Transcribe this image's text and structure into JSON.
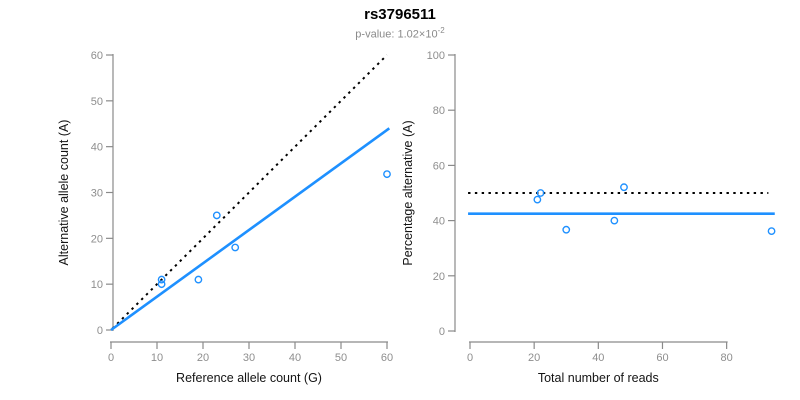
{
  "header": {
    "title": "rs3796511",
    "subtitle_base": "p-value: 1.02×10",
    "subtitle_exponent": "-2"
  },
  "colors": {
    "accent_blue": "#1E90FF",
    "axis_gray": "#8a8a8a",
    "tick_label_gray": "#8e8e8e",
    "label_black": "#141414",
    "dotted_black": "#000000"
  },
  "chart_data": [
    {
      "name": "allele-count-scatter",
      "type": "scatter",
      "xlabel": "Reference allele count (G)",
      "ylabel": "Alternative allele count (A)",
      "xlim": [
        0,
        60
      ],
      "ylim": [
        0,
        60
      ],
      "xticks": [
        0,
        10,
        20,
        30,
        40,
        50,
        60
      ],
      "yticks": [
        0,
        10,
        20,
        30,
        40,
        50,
        60
      ],
      "grid": false,
      "points": [
        [
          11,
          10
        ],
        [
          11,
          11
        ],
        [
          19,
          11
        ],
        [
          23,
          25
        ],
        [
          27,
          18
        ],
        [
          60,
          34
        ]
      ],
      "lines": [
        {
          "name": "identity-line",
          "style": "dotted",
          "color": "#000000",
          "from": [
            0.3,
            0.3
          ],
          "to": [
            60,
            60
          ]
        },
        {
          "name": "fit-line",
          "style": "solid",
          "color": "#1E90FF",
          "from": [
            0,
            0
          ],
          "to": [
            60.5,
            44
          ]
        }
      ]
    },
    {
      "name": "percentage-vs-reads",
      "type": "scatter",
      "xlabel": "Total number of reads",
      "ylabel": "Percentage alternative (A)",
      "xlim": [
        0,
        95
      ],
      "ylim": [
        0,
        100
      ],
      "xticks": [
        0,
        20,
        40,
        60,
        80
      ],
      "yticks": [
        0,
        20,
        40,
        60,
        80,
        100
      ],
      "grid": false,
      "points": [
        [
          21,
          47.6
        ],
        [
          22,
          50
        ],
        [
          30,
          36.7
        ],
        [
          45,
          40
        ],
        [
          48,
          52.1
        ],
        [
          94,
          36.2
        ]
      ],
      "lines": [
        {
          "name": "expected-50pct-line",
          "style": "dotted",
          "color": "#000000",
          "from": [
            -0.6,
            50
          ],
          "to": [
            93,
            50
          ]
        },
        {
          "name": "mean-percentage-line",
          "style": "solid",
          "color": "#1E90FF",
          "from": [
            -0.6,
            42.5
          ],
          "to": [
            95,
            42.5
          ]
        }
      ]
    }
  ]
}
